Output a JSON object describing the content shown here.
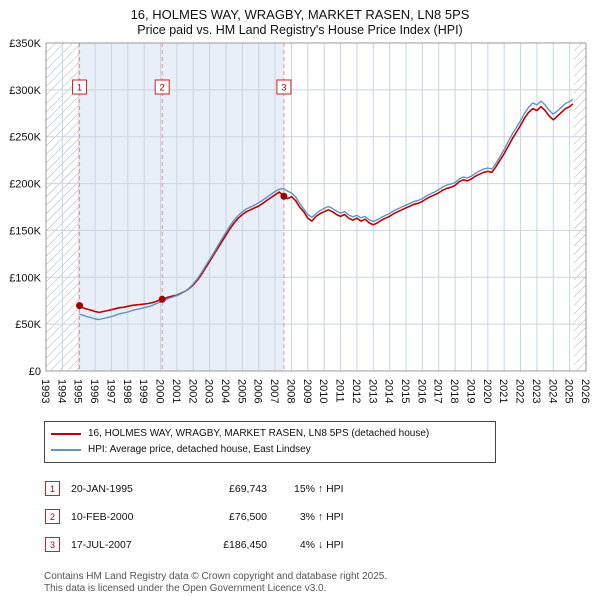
{
  "header": {
    "line1": "16, HOLMES WAY, WRAGBY, MARKET RASEN, LN8 5PS",
    "line2": "Price paid vs. HM Land Registry's House Price Index (HPI)"
  },
  "chart_data": {
    "type": "line",
    "title": "Price paid vs. HPI",
    "x_range": [
      1993,
      2026
    ],
    "y_range": [
      0,
      350
    ],
    "y_unit": "GBP thousands",
    "x_ticks": [
      1993,
      1994,
      1995,
      1996,
      1997,
      1998,
      1999,
      2000,
      2001,
      2002,
      2003,
      2004,
      2005,
      2006,
      2007,
      2008,
      2009,
      2010,
      2011,
      2012,
      2013,
      2014,
      2015,
      2016,
      2017,
      2018,
      2019,
      2020,
      2021,
      2022,
      2023,
      2024,
      2025,
      2026
    ],
    "y_ticks": [
      [
        0,
        "£0"
      ],
      [
        50,
        "£50K"
      ],
      [
        100,
        "£100K"
      ],
      [
        150,
        "£150K"
      ],
      [
        200,
        "£200K"
      ],
      [
        250,
        "£250K"
      ],
      [
        300,
        "£300K"
      ],
      [
        350,
        "£350K"
      ]
    ],
    "shaded_region": [
      1995.05,
      2007.54
    ],
    "hatch_regions": [
      [
        1993,
        1995.05
      ],
      [
        2025.25,
        2026
      ]
    ],
    "colors": {
      "property": "#c00000",
      "hpi": "#5f93c6",
      "shade": "#e8eff9",
      "grid": "#c9d4e4",
      "hatch": "#aab2bd",
      "dashed": "#f09090",
      "marker": "#a00000",
      "badge_border": "#cc2222",
      "badge_text": "#b00000",
      "border": "#999999"
    },
    "series": [
      {
        "name": "16, HOLMES WAY, WRAGBY, MARKET RASEN, LN8 5PS (detached house)",
        "key": "property",
        "points": [
          [
            1995.05,
            69.7
          ],
          [
            1995.25,
            67.5
          ],
          [
            1995.5,
            66
          ],
          [
            1995.75,
            65
          ],
          [
            1996,
            63.5
          ],
          [
            1996.25,
            62.5
          ],
          [
            1996.5,
            63.5
          ],
          [
            1996.75,
            64.5
          ],
          [
            1997,
            65.5
          ],
          [
            1997.25,
            66.5
          ],
          [
            1997.5,
            67.5
          ],
          [
            1997.75,
            68
          ],
          [
            1998,
            69
          ],
          [
            1998.25,
            70
          ],
          [
            1998.5,
            70.5
          ],
          [
            1998.75,
            71
          ],
          [
            1999,
            71.5
          ],
          [
            1999.25,
            72
          ],
          [
            1999.5,
            73
          ],
          [
            1999.75,
            74.5
          ],
          [
            2000.1,
            76.5
          ],
          [
            2000.25,
            77.5
          ],
          [
            2000.5,
            79
          ],
          [
            2000.75,
            80
          ],
          [
            2001,
            81
          ],
          [
            2001.25,
            83
          ],
          [
            2001.5,
            85
          ],
          [
            2001.75,
            88
          ],
          [
            2002,
            92
          ],
          [
            2002.25,
            97
          ],
          [
            2002.5,
            103
          ],
          [
            2002.75,
            110
          ],
          [
            2003,
            117
          ],
          [
            2003.25,
            124
          ],
          [
            2003.5,
            131
          ],
          [
            2003.75,
            138
          ],
          [
            2004,
            145
          ],
          [
            2004.25,
            152
          ],
          [
            2004.5,
            158
          ],
          [
            2004.75,
            163
          ],
          [
            2005,
            167
          ],
          [
            2005.25,
            170
          ],
          [
            2005.5,
            172
          ],
          [
            2005.75,
            174
          ],
          [
            2006,
            176
          ],
          [
            2006.25,
            179
          ],
          [
            2006.5,
            182
          ],
          [
            2006.75,
            185
          ],
          [
            2007,
            188
          ],
          [
            2007.25,
            191
          ],
          [
            2007.54,
            186.5
          ],
          [
            2007.75,
            184
          ],
          [
            2008,
            186
          ],
          [
            2008.25,
            182
          ],
          [
            2008.5,
            175
          ],
          [
            2008.75,
            170
          ],
          [
            2009,
            163
          ],
          [
            2009.25,
            160
          ],
          [
            2009.5,
            165
          ],
          [
            2009.75,
            168
          ],
          [
            2010,
            170
          ],
          [
            2010.25,
            172
          ],
          [
            2010.5,
            170
          ],
          [
            2010.75,
            167
          ],
          [
            2011,
            165
          ],
          [
            2011.25,
            167
          ],
          [
            2011.5,
            163
          ],
          [
            2011.75,
            161
          ],
          [
            2012,
            163
          ],
          [
            2012.25,
            160
          ],
          [
            2012.5,
            162
          ],
          [
            2012.75,
            158
          ],
          [
            2013,
            156
          ],
          [
            2013.25,
            158
          ],
          [
            2013.5,
            161
          ],
          [
            2013.75,
            163
          ],
          [
            2014,
            165
          ],
          [
            2014.25,
            168
          ],
          [
            2014.5,
            170
          ],
          [
            2014.75,
            172
          ],
          [
            2015,
            174
          ],
          [
            2015.25,
            176
          ],
          [
            2015.5,
            178
          ],
          [
            2015.75,
            179
          ],
          [
            2016,
            181
          ],
          [
            2016.25,
            184
          ],
          [
            2016.5,
            186
          ],
          [
            2016.75,
            188
          ],
          [
            2017,
            190
          ],
          [
            2017.25,
            193
          ],
          [
            2017.5,
            195
          ],
          [
            2017.75,
            196
          ],
          [
            2018,
            198
          ],
          [
            2018.25,
            202
          ],
          [
            2018.5,
            204
          ],
          [
            2018.75,
            203
          ],
          [
            2019,
            205
          ],
          [
            2019.25,
            208
          ],
          [
            2019.5,
            210
          ],
          [
            2019.75,
            212
          ],
          [
            2020,
            213
          ],
          [
            2020.25,
            212
          ],
          [
            2020.5,
            218
          ],
          [
            2020.75,
            225
          ],
          [
            2021,
            232
          ],
          [
            2021.25,
            240
          ],
          [
            2021.5,
            248
          ],
          [
            2021.75,
            255
          ],
          [
            2022,
            262
          ],
          [
            2022.25,
            270
          ],
          [
            2022.5,
            276
          ],
          [
            2022.75,
            280
          ],
          [
            2023,
            278
          ],
          [
            2023.25,
            282
          ],
          [
            2023.5,
            278
          ],
          [
            2023.75,
            272
          ],
          [
            2024,
            268
          ],
          [
            2024.25,
            272
          ],
          [
            2024.5,
            276
          ],
          [
            2024.75,
            280
          ],
          [
            2025,
            282
          ],
          [
            2025.2,
            285
          ]
        ]
      },
      {
        "name": "HPI: Average price, detached house, East Lindsey",
        "key": "hpi",
        "points": [
          [
            1995.05,
            60.5
          ],
          [
            1995.25,
            59.5
          ],
          [
            1995.5,
            58
          ],
          [
            1995.75,
            57
          ],
          [
            1996,
            55.5
          ],
          [
            1996.25,
            55
          ],
          [
            1996.5,
            56
          ],
          [
            1996.75,
            57
          ],
          [
            1997,
            58
          ],
          [
            1997.25,
            59.5
          ],
          [
            1997.5,
            61
          ],
          [
            1997.75,
            62
          ],
          [
            1998,
            63
          ],
          [
            1998.25,
            64.5
          ],
          [
            1998.5,
            65.5
          ],
          [
            1998.75,
            66.5
          ],
          [
            1999,
            67.5
          ],
          [
            1999.25,
            68.5
          ],
          [
            1999.5,
            70
          ],
          [
            1999.75,
            72
          ],
          [
            2000.1,
            74.3
          ],
          [
            2000.25,
            75.5
          ],
          [
            2000.5,
            77.5
          ],
          [
            2000.75,
            79
          ],
          [
            2001,
            80.5
          ],
          [
            2001.25,
            82.5
          ],
          [
            2001.5,
            85
          ],
          [
            2001.75,
            88.5
          ],
          [
            2002,
            93
          ],
          [
            2002.25,
            98.5
          ],
          [
            2002.5,
            105
          ],
          [
            2002.75,
            112
          ],
          [
            2003,
            119
          ],
          [
            2003.25,
            126
          ],
          [
            2003.5,
            133.5
          ],
          [
            2003.75,
            141
          ],
          [
            2004,
            148
          ],
          [
            2004.25,
            155
          ],
          [
            2004.5,
            161
          ],
          [
            2004.75,
            166
          ],
          [
            2005,
            170
          ],
          [
            2005.25,
            173
          ],
          [
            2005.5,
            175
          ],
          [
            2005.75,
            177
          ],
          [
            2006,
            179.5
          ],
          [
            2006.25,
            182.5
          ],
          [
            2006.5,
            185.5
          ],
          [
            2006.75,
            188.5
          ],
          [
            2007,
            191.5
          ],
          [
            2007.25,
            194
          ],
          [
            2007.54,
            194.5
          ],
          [
            2007.75,
            192
          ],
          [
            2008,
            190
          ],
          [
            2008.25,
            186
          ],
          [
            2008.5,
            179
          ],
          [
            2008.75,
            173
          ],
          [
            2009,
            167
          ],
          [
            2009.25,
            164
          ],
          [
            2009.5,
            168
          ],
          [
            2009.75,
            171
          ],
          [
            2010,
            173.5
          ],
          [
            2010.25,
            175.5
          ],
          [
            2010.5,
            173.5
          ],
          [
            2010.75,
            170.5
          ],
          [
            2011,
            168.5
          ],
          [
            2011.25,
            170
          ],
          [
            2011.5,
            166.5
          ],
          [
            2011.75,
            164.5
          ],
          [
            2012,
            166
          ],
          [
            2012.25,
            163.5
          ],
          [
            2012.5,
            165
          ],
          [
            2012.75,
            161.5
          ],
          [
            2013,
            159.5
          ],
          [
            2013.25,
            161.5
          ],
          [
            2013.5,
            164
          ],
          [
            2013.75,
            166
          ],
          [
            2014,
            168
          ],
          [
            2014.25,
            171
          ],
          [
            2014.5,
            173
          ],
          [
            2014.75,
            175
          ],
          [
            2015,
            177
          ],
          [
            2015.25,
            179
          ],
          [
            2015.5,
            181
          ],
          [
            2015.75,
            182
          ],
          [
            2016,
            184
          ],
          [
            2016.25,
            187
          ],
          [
            2016.5,
            189
          ],
          [
            2016.75,
            191
          ],
          [
            2017,
            193.5
          ],
          [
            2017.25,
            196.5
          ],
          [
            2017.5,
            198.5
          ],
          [
            2017.75,
            199.5
          ],
          [
            2018,
            201
          ],
          [
            2018.25,
            205
          ],
          [
            2018.5,
            207
          ],
          [
            2018.75,
            206
          ],
          [
            2019,
            208
          ],
          [
            2019.25,
            211
          ],
          [
            2019.5,
            213.5
          ],
          [
            2019.75,
            215.5
          ],
          [
            2020,
            216.5
          ],
          [
            2020.25,
            215.5
          ],
          [
            2020.5,
            221.5
          ],
          [
            2020.75,
            229
          ],
          [
            2021,
            236.5
          ],
          [
            2021.25,
            245
          ],
          [
            2021.5,
            253
          ],
          [
            2021.75,
            260
          ],
          [
            2022,
            267
          ],
          [
            2022.25,
            275
          ],
          [
            2022.5,
            281.5
          ],
          [
            2022.75,
            286
          ],
          [
            2023,
            284
          ],
          [
            2023.25,
            288
          ],
          [
            2023.5,
            284
          ],
          [
            2023.75,
            278
          ],
          [
            2024,
            274
          ],
          [
            2024.25,
            277.5
          ],
          [
            2024.5,
            281.5
          ],
          [
            2024.75,
            285.5
          ],
          [
            2025,
            287.5
          ],
          [
            2025.2,
            290
          ]
        ]
      }
    ],
    "sales": [
      {
        "n": "1",
        "x": 1995.05,
        "y": 69.743
      },
      {
        "n": "2",
        "x": 2000.1,
        "y": 76.5
      },
      {
        "n": "3",
        "x": 2007.54,
        "y": 186.45
      }
    ]
  },
  "legend": {
    "items": [
      {
        "label": "16, HOLMES WAY, WRAGBY, MARKET RASEN, LN8 5PS (detached house)",
        "color": "#c00000"
      },
      {
        "label": "HPI: Average price, detached house, East Lindsey",
        "color": "#5f93c6"
      }
    ]
  },
  "table": {
    "rows": [
      {
        "num": "1",
        "date": "20-JAN-1995",
        "price": "£69,743",
        "change": "15%",
        "arrow": "↑",
        "vs": "HPI"
      },
      {
        "num": "2",
        "date": "10-FEB-2000",
        "price": "£76,500",
        "change": "3%",
        "arrow": "↑",
        "vs": "HPI"
      },
      {
        "num": "3",
        "date": "17-JUL-2007",
        "price": "£186,450",
        "change": "4%",
        "arrow": "↓",
        "vs": "HPI"
      }
    ]
  },
  "footer": {
    "line1": "Contains HM Land Registry data © Crown copyright and database right 2025.",
    "line2": "This data is licensed under the Open Government Licence v3.0."
  }
}
